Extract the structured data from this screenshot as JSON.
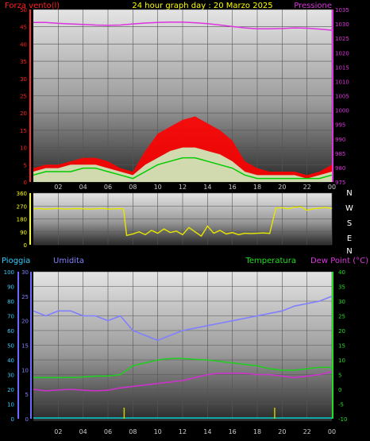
{
  "title": "24 hour graph day : 20 Marzo 2025",
  "colors": {
    "wind": "#ff2020",
    "gust": "#ff0000",
    "avgwind": "#00cc00",
    "calm": "#ccffcc",
    "pressure": "#dd33dd",
    "direction": "#e6e600",
    "humidity": "#8080ff",
    "temperature": "#22cc22",
    "dewpoint": "#cc33cc",
    "rain": "#00cccc",
    "rainaxis": "#6a6aff"
  },
  "chart_data": [
    {
      "type": "area",
      "name_left": "Forza vento(l)",
      "name_right": "Pressione",
      "x_ticks": [
        "02",
        "04",
        "06",
        "08",
        "10",
        "12",
        "14",
        "16",
        "18",
        "20",
        "22",
        "00"
      ],
      "y_left_ticks": [
        "0",
        "5",
        "10",
        "15",
        "20",
        "25",
        "30",
        "35",
        "40",
        "45",
        "50"
      ],
      "y_right_ticks": [
        "975",
        "980",
        "985",
        "990",
        "995",
        "1000",
        "1005",
        "1010",
        "1015",
        "1020",
        "1025",
        "1030",
        "1035"
      ],
      "ylim_left": [
        0,
        50
      ],
      "ylim_right": [
        975,
        1035
      ],
      "hours": [
        0,
        1,
        2,
        3,
        4,
        5,
        6,
        7,
        8,
        9,
        10,
        11,
        12,
        13,
        14,
        15,
        16,
        17,
        18,
        19,
        20,
        21,
        22,
        23,
        24
      ],
      "gust": [
        4,
        5,
        5,
        6,
        7,
        7,
        6,
        4,
        3,
        9,
        14,
        16,
        18,
        19,
        17,
        15,
        12,
        6,
        4,
        3,
        3,
        3,
        2,
        3,
        5
      ],
      "wind": [
        3,
        4,
        4,
        5,
        5,
        5,
        4,
        3,
        2,
        5,
        7,
        9,
        10,
        10,
        9,
        8,
        6,
        3,
        2,
        2,
        2,
        2,
        1,
        2,
        3
      ],
      "avg_wind": [
        2,
        3,
        3,
        3,
        4,
        4,
        3,
        2,
        1,
        3,
        5,
        6,
        7,
        7,
        6,
        5,
        4,
        2,
        1,
        1,
        1,
        1,
        1,
        1,
        2
      ],
      "pressure": [
        1030.5,
        1030.5,
        1030.2,
        1030.0,
        1029.8,
        1029.6,
        1029.5,
        1029.6,
        1030.0,
        1030.3,
        1030.5,
        1030.6,
        1030.6,
        1030.4,
        1030.1,
        1029.6,
        1029.1,
        1028.6,
        1028.3,
        1028.3,
        1028.4,
        1028.6,
        1028.5,
        1028.2,
        1027.8
      ]
    },
    {
      "type": "line",
      "labels_right": [
        "N",
        "W",
        "S",
        "E",
        "N"
      ],
      "x_ticks": [],
      "y_ticks": [
        "360",
        "270",
        "180",
        "90",
        "0"
      ],
      "ylim": [
        0,
        360
      ],
      "hours": [
        0,
        0.5,
        1,
        1.5,
        2,
        2.5,
        3,
        3.5,
        4,
        4.5,
        5,
        5.5,
        6,
        6.5,
        7,
        7.25,
        7.5,
        8,
        8.5,
        9,
        9.5,
        10,
        10.5,
        11,
        11.5,
        12,
        12.5,
        13,
        13.5,
        14,
        14.5,
        15,
        15.5,
        16,
        16.5,
        17,
        17.5,
        18,
        18.5,
        19,
        19.5,
        20,
        20.5,
        21,
        21.5,
        22,
        22.5,
        23,
        23.5,
        24
      ],
      "direction": [
        250,
        252,
        248,
        251,
        253,
        249,
        250,
        252,
        251,
        248,
        250,
        253,
        249,
        250,
        252,
        250,
        65,
        75,
        90,
        70,
        100,
        80,
        110,
        85,
        95,
        70,
        120,
        90,
        60,
        130,
        80,
        100,
        75,
        85,
        70,
        80,
        78,
        80,
        82,
        79,
        255,
        258,
        250,
        262,
        265,
        240,
        250,
        255,
        260,
        252
      ]
    },
    {
      "type": "line",
      "label_rain": "Pioggia",
      "label_humidity": "Umidita",
      "label_temperature": "Temperatura",
      "label_dewpoint": "Dew Point (°C)",
      "x_ticks": [
        "02",
        "04",
        "06",
        "08",
        "10",
        "12",
        "14",
        "16",
        "18",
        "20",
        "22",
        "00"
      ],
      "y_rain_ticks": [
        "0",
        "10",
        "20",
        "30",
        "40",
        "50",
        "60",
        "70",
        "80",
        "90",
        "100"
      ],
      "y_humidity_ticks": [
        "0",
        "5",
        "10",
        "15",
        "20",
        "25",
        "30"
      ],
      "y_temp_ticks": [
        "-10",
        "-5",
        "0",
        "5",
        "10",
        "15",
        "20",
        "25",
        "30",
        "35",
        "40"
      ],
      "ylim_humidity": [
        0,
        30
      ],
      "ylim_temp": [
        -10,
        40
      ],
      "hours": [
        0,
        1,
        2,
        3,
        4,
        5,
        6,
        7,
        8,
        9,
        10,
        11,
        12,
        13,
        14,
        15,
        16,
        17,
        18,
        19,
        20,
        21,
        22,
        23,
        24
      ],
      "humidity": [
        22,
        21,
        22,
        22,
        21,
        21,
        20,
        21,
        18,
        17,
        16,
        17,
        18,
        18.5,
        19,
        19.5,
        20,
        20.5,
        21,
        21.5,
        22,
        23,
        23.5,
        24,
        25
      ],
      "temperature": [
        4,
        4,
        4,
        4,
        4.2,
        4.5,
        4.5,
        5,
        8,
        9,
        10,
        10.5,
        10.5,
        10.2,
        10,
        9.5,
        9,
        8.5,
        8,
        7,
        6.5,
        6.5,
        7,
        7.5,
        7.5
      ],
      "dewpoint": [
        0,
        -0.5,
        -0.2,
        0,
        -0.3,
        -0.5,
        -0.3,
        0.5,
        1,
        1.5,
        2,
        2.5,
        3,
        4,
        5,
        5.5,
        5.5,
        5.5,
        5,
        5,
        4.5,
        4,
        4.5,
        5,
        6
      ],
      "rain": [
        0,
        0,
        0,
        0,
        0,
        0,
        0,
        0,
        0,
        0,
        0,
        0,
        0,
        0,
        0,
        0,
        0,
        0,
        0,
        0,
        0,
        0,
        0,
        0,
        0
      ],
      "rain_marks": [
        7.3,
        19.4
      ]
    }
  ]
}
